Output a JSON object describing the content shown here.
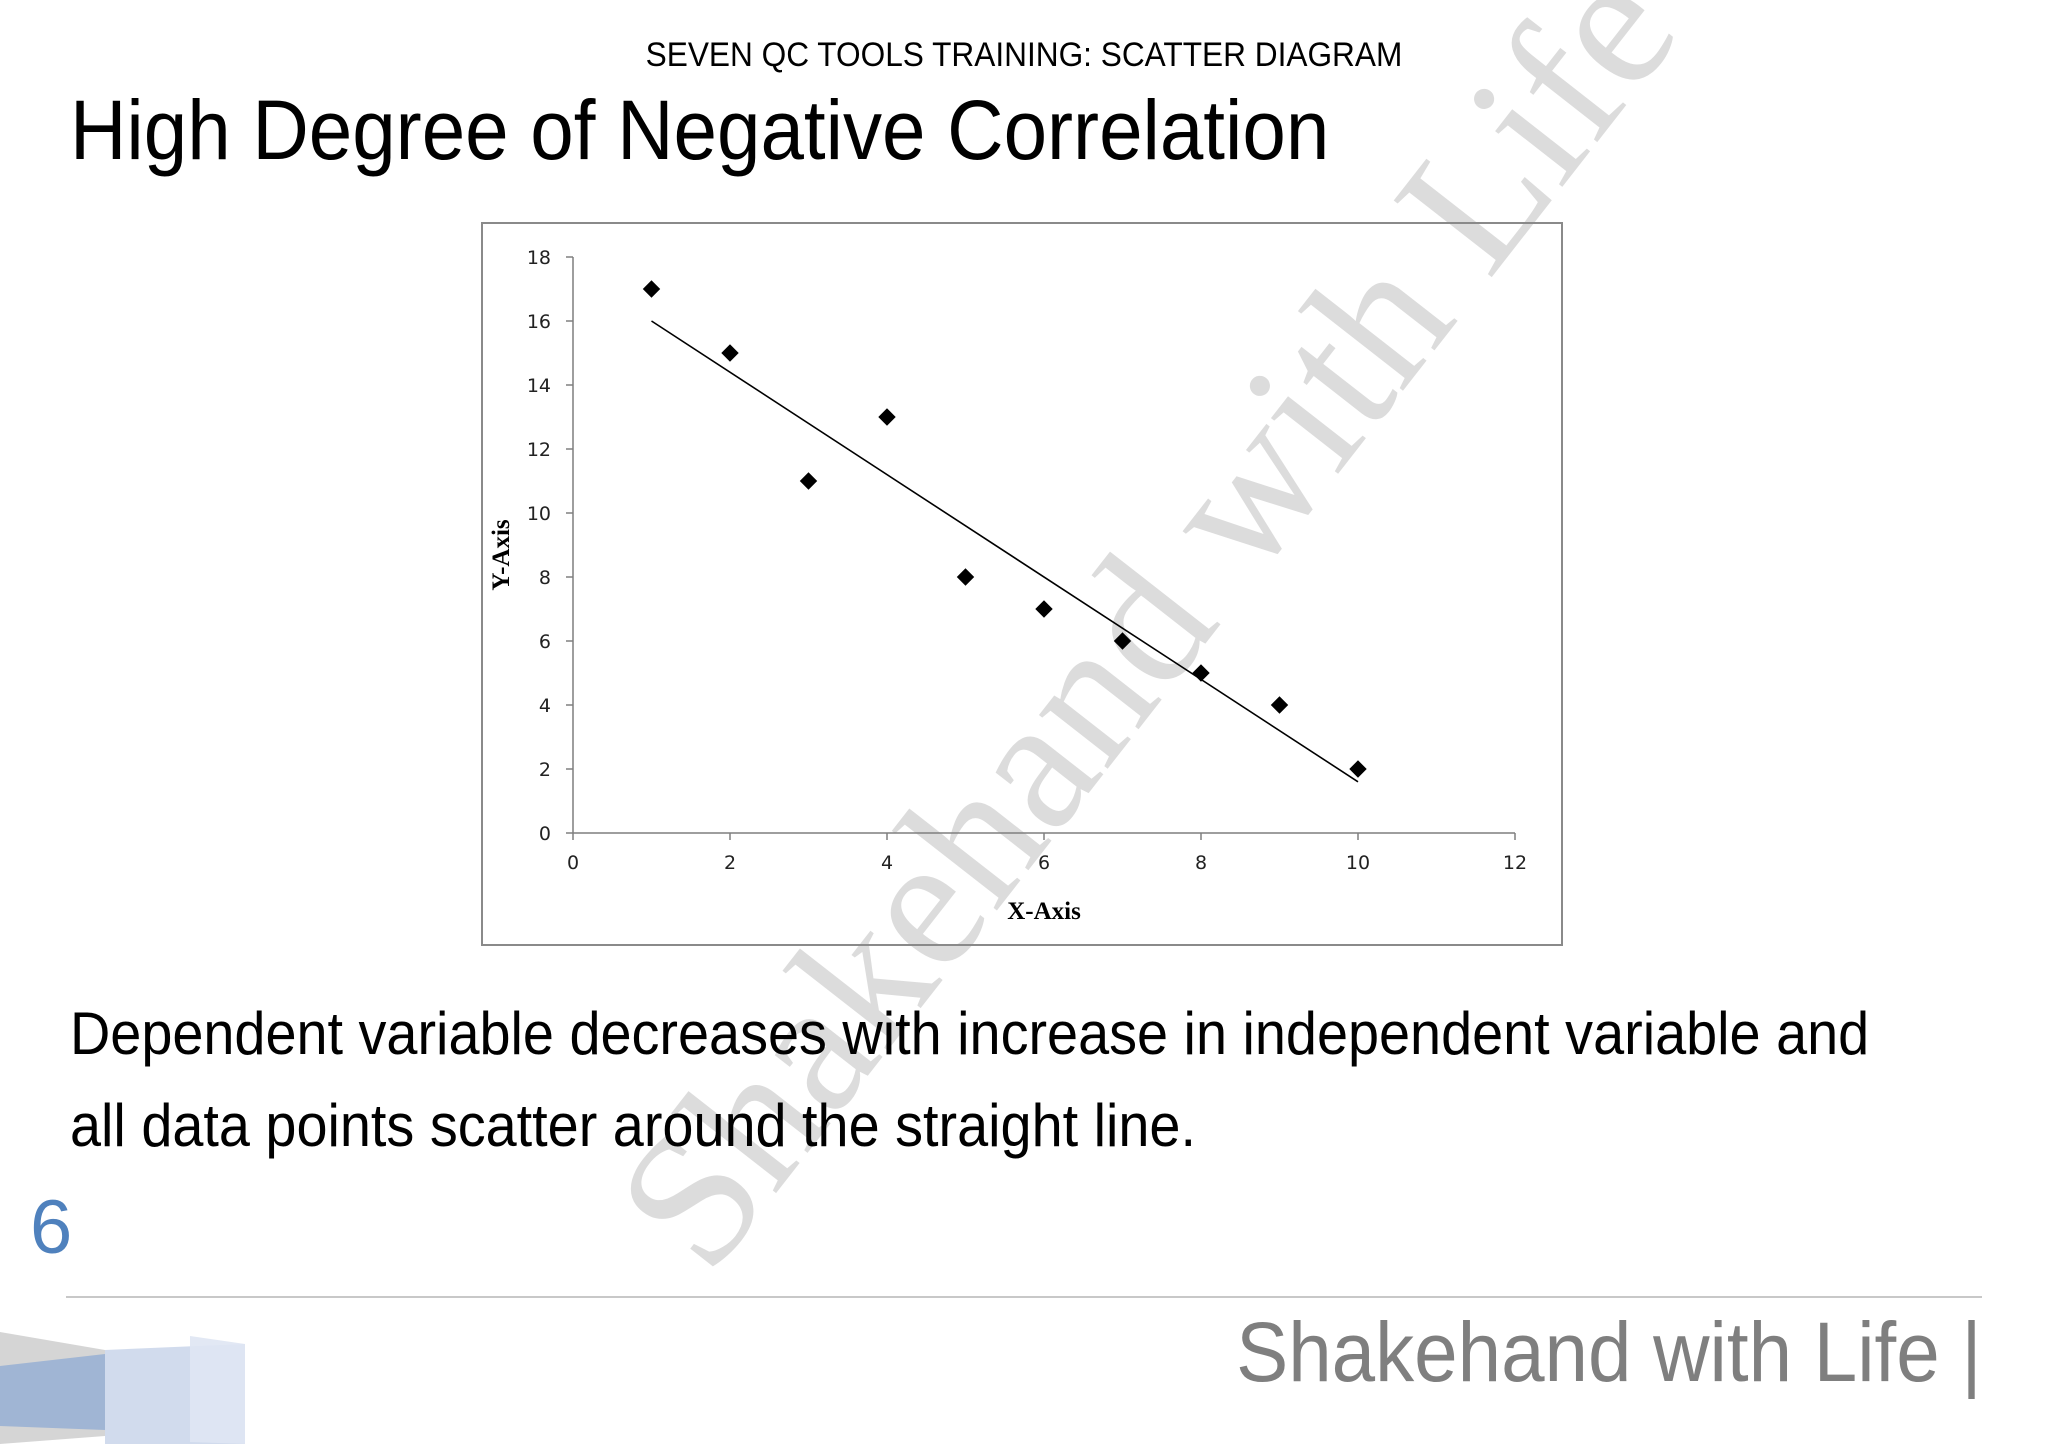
{
  "header": {
    "text": "SEVEN QC TOOLS TRAINING:  SCATTER DIAGRAM"
  },
  "title": "High Degree of Negative Correlation",
  "body_text": "Dependent variable decreases with increase in independent variable and all data points scatter around the straight line.",
  "page_number": "6",
  "footer": {
    "brand": "Shakehand with Life |"
  },
  "watermark": "Shakehand with Life",
  "colors": {
    "page_number": "#4f81bd",
    "brand": "#7f7f7f",
    "points": "#000000"
  },
  "chart_data": {
    "type": "scatter",
    "title": "",
    "xlabel": "X-Axis",
    "ylabel": "Y-Axis",
    "xlim": [
      0,
      12
    ],
    "ylim": [
      0,
      18
    ],
    "x_ticks": [
      0,
      2,
      4,
      6,
      8,
      10,
      12
    ],
    "y_ticks": [
      0,
      2,
      4,
      6,
      8,
      10,
      12,
      14,
      16,
      18
    ],
    "grid": false,
    "marker": "diamond",
    "series": [
      {
        "x": [
          1,
          2,
          3,
          4,
          5,
          6,
          7,
          8,
          9,
          10
        ],
        "y": [
          17,
          15,
          11,
          13,
          8,
          7,
          6,
          5,
          4,
          2
        ]
      }
    ],
    "trendline": {
      "x": [
        1,
        10
      ],
      "y": [
        16.0,
        1.6
      ]
    }
  }
}
